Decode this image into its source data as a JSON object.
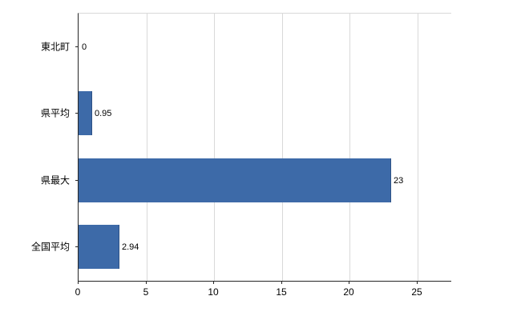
{
  "chart_data": {
    "type": "bar",
    "orientation": "horizontal",
    "title": "",
    "xlabel": "",
    "ylabel": "",
    "categories": [
      "東北町",
      "県平均",
      "県最大",
      "全国平均"
    ],
    "values": [
      0,
      0.95,
      23,
      2.94
    ],
    "value_labels": [
      "0",
      "0.95",
      "23",
      "2.94"
    ],
    "xlim": [
      0,
      27.5
    ],
    "xticks": [
      0,
      5,
      10,
      15,
      20,
      25
    ],
    "xtick_labels": [
      "0",
      "5",
      "10",
      "15",
      "20",
      "25"
    ],
    "grid": true,
    "legend": "none",
    "bar_color": "#3d6aa8",
    "bar_border_color": "#2e5286",
    "grid_color": "#d9d9d9",
    "axis_color": "#262626",
    "background_color": "#ffffff"
  }
}
